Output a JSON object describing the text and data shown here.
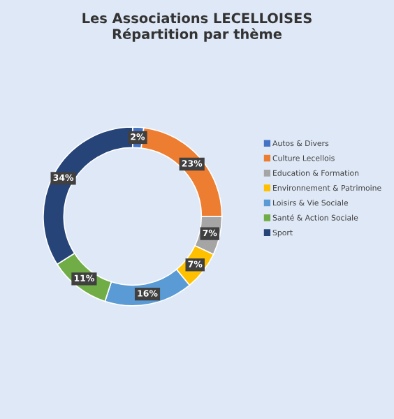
{
  "chart_data": {
    "type": "donut",
    "title": "Les Associations LECELLOISES\nRépartition par thème",
    "categories": [
      "Autos & Divers",
      "Culture Lecellois",
      "Education & Formation",
      "Environnement & Patrimoine",
      "Loisirs & Vie Sociale",
      "Santé & Action Sociale",
      "Sport"
    ],
    "values": [
      2,
      23,
      7,
      7,
      16,
      11,
      34
    ],
    "value_labels": [
      "2%",
      "23%",
      "7%",
      "7%",
      "16%",
      "11%",
      "34%"
    ],
    "colors": [
      "#4472c4",
      "#ed7d31",
      "#a5a5a5",
      "#ffc000",
      "#5b9bd5",
      "#70ad47",
      "#264478"
    ],
    "legend": "right"
  }
}
